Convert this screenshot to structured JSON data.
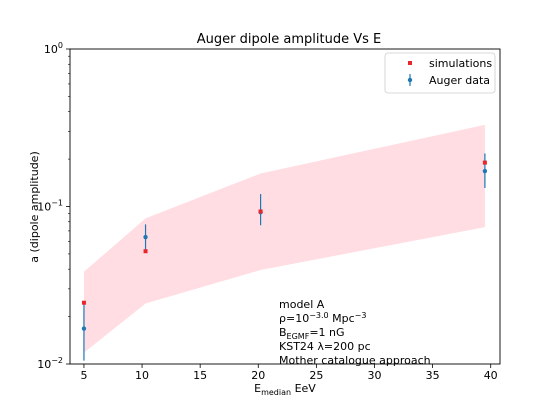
{
  "chart_data": {
    "type": "scatter",
    "title": "Auger dipole amplitude Vs E",
    "xlabel": {
      "prefix": "E",
      "subscript": "median",
      "suffix": " EeV"
    },
    "ylabel": "a (dipole amplitude)",
    "xlim": [
      3.8,
      40.8
    ],
    "ylim": [
      0.01,
      1.0
    ],
    "yscale": "log",
    "x_ticks": [
      5,
      10,
      15,
      20,
      25,
      30,
      35,
      40
    ],
    "x_tick_labels": [
      "5",
      "10",
      "15",
      "20",
      "25",
      "30",
      "35",
      "40"
    ],
    "y_ticks": [
      0.01,
      0.1,
      1.0
    ],
    "y_tick_labels": [
      {
        "base": "10",
        "exp": "−2"
      },
      {
        "base": "10",
        "exp": "−1"
      },
      {
        "base": "10",
        "exp": "0"
      }
    ],
    "band": {
      "x": [
        5.0,
        10.3,
        20.2,
        39.5
      ],
      "lower": [
        0.0118,
        0.0242,
        0.0395,
        0.074
      ],
      "upper": [
        0.0385,
        0.084,
        0.162,
        0.33
      ],
      "color": "#ffdde3"
    },
    "series": [
      {
        "name": "simulations",
        "marker": "square",
        "color": "#e8262b",
        "x": [
          5.0,
          10.3,
          20.2,
          39.5
        ],
        "y": [
          0.0245,
          0.052,
          0.093,
          0.19
        ]
      },
      {
        "name": "Auger data",
        "marker": "errorbar-circle",
        "color": "#1f77b4",
        "x": [
          5.0,
          10.3,
          20.2,
          39.5
        ],
        "y": [
          0.0168,
          0.064,
          0.092,
          0.168
        ],
        "y_low": [
          0.0105,
          0.052,
          0.076,
          0.131
        ],
        "y_high": [
          0.0245,
          0.077,
          0.12,
          0.217
        ]
      }
    ],
    "legend": {
      "placement": "top-right",
      "entries": [
        "simulations",
        "Auger data"
      ]
    },
    "annotation": {
      "placement": "bottom-right",
      "line1": "model A",
      "line2": {
        "prefix": "ρ=10",
        "exp": "−3.0",
        "suffix": " Mpc",
        "suffix_exp": "−3"
      },
      "line3": {
        "prefix": "B",
        "subscript": "EGMF",
        "suffix": "=1 nG"
      },
      "line4": "KST24 λ=200 pc",
      "line5": "Mother catalogue approach"
    }
  }
}
